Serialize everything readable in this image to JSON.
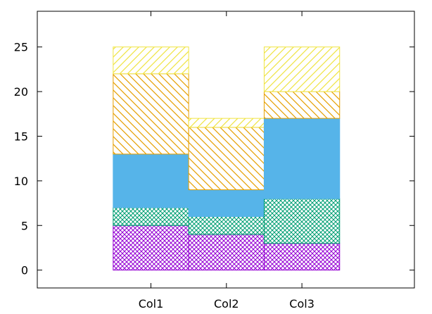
{
  "chart_data": {
    "type": "bar",
    "stacked": true,
    "categories": [
      "Col1",
      "Col2",
      "Col3"
    ],
    "ylim": [
      -2,
      29
    ],
    "yticks": [
      0,
      5,
      10,
      15,
      20,
      25
    ],
    "grid": false,
    "legend": "none",
    "title": "",
    "xlabel": "",
    "ylabel": "",
    "series": [
      {
        "values": [
          5,
          4,
          3
        ],
        "color": "#9400d3",
        "pattern": "crosshatch-fine"
      },
      {
        "values": [
          2,
          2,
          5
        ],
        "color": "#009e73",
        "pattern": "crosshatch-fine"
      },
      {
        "values": [
          6,
          3,
          9
        ],
        "color": "#56b4e9",
        "pattern": "solid"
      },
      {
        "values": [
          9,
          7,
          3
        ],
        "color": "#e69f00",
        "pattern": "diagonal-backslash"
      },
      {
        "values": [
          3,
          1,
          5
        ],
        "color": "#f0e442",
        "pattern": "diagonal-slash"
      }
    ]
  }
}
